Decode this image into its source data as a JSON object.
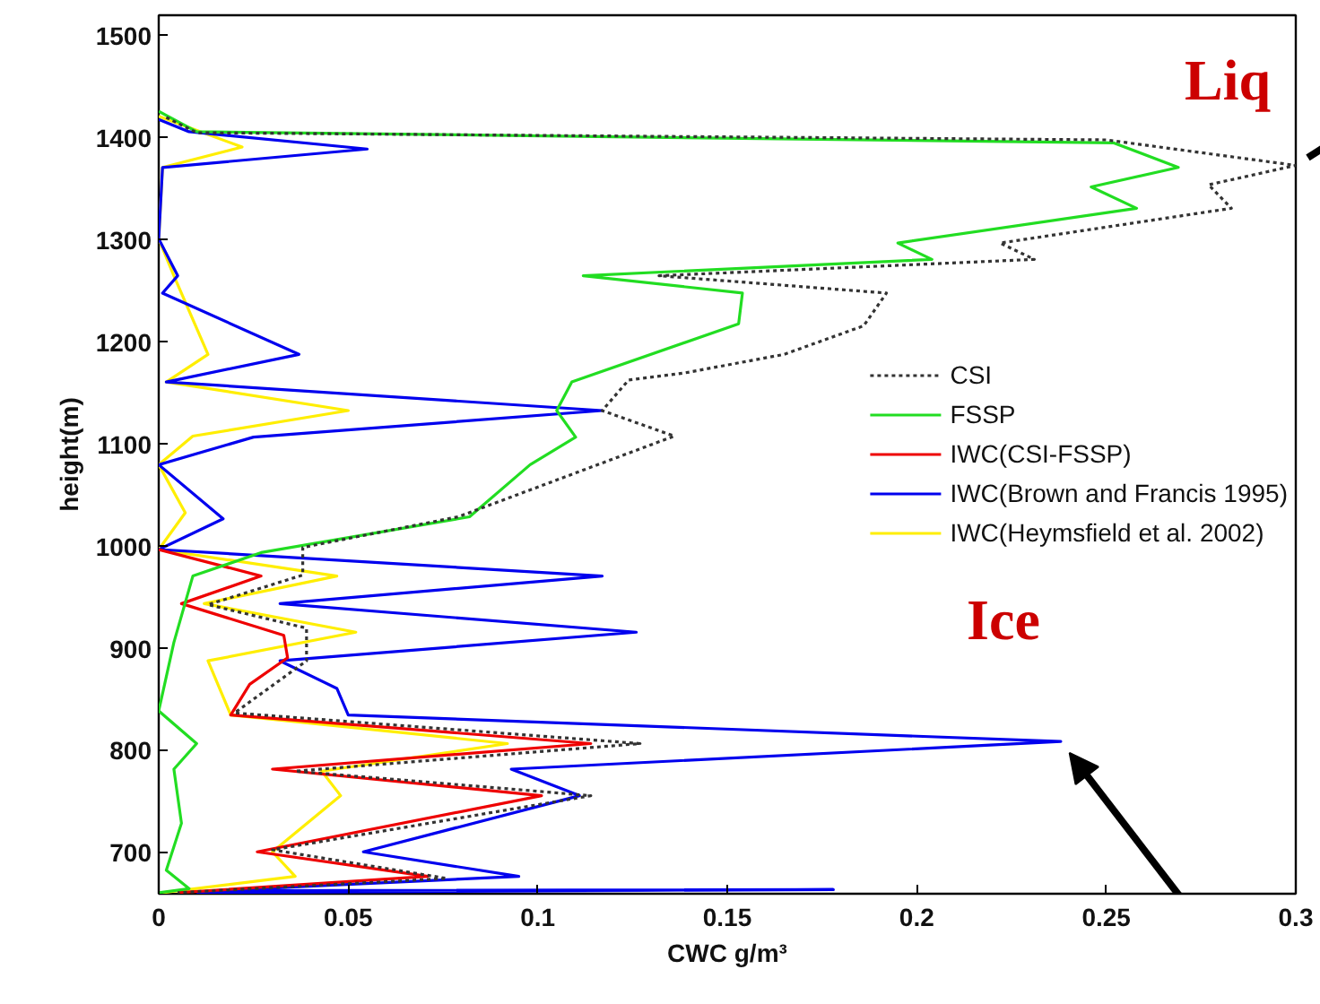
{
  "chart_data": {
    "type": "line",
    "xlabel": "CWC g/m³",
    "ylabel": "height(m)",
    "xlim": [
      0,
      0.3
    ],
    "xticks": [
      0,
      0.05,
      0.1,
      0.15,
      0.2,
      0.25,
      0.3
    ],
    "ylim": [
      660,
      1520
    ],
    "yticks": [
      700,
      800,
      900,
      1000,
      1100,
      1200,
      1300,
      1400,
      1500
    ],
    "grid": false,
    "legend": "right",
    "annotations": [
      {
        "text": "Liq",
        "x": 0.3,
        "y": 1373
      },
      {
        "text": "Ice",
        "x": 0.238,
        "y": 809
      }
    ],
    "series": [
      {
        "name": "CSI",
        "color": "#333333",
        "line_style": "dashed",
        "x": [
          0.002,
          0.01,
          0.25,
          0.3,
          0.277,
          0.283,
          0.222,
          0.231,
          0.132,
          0.192,
          0.186,
          0.165,
          0.139,
          0.124,
          0.117,
          0.136,
          0.079,
          0.038,
          0.038,
          0.013,
          0.039,
          0.039,
          0.02,
          0.127,
          0.036,
          0.114,
          0.03,
          0.076,
          0.005
        ],
        "values": [
          1420,
          1405,
          1398,
          1373,
          1354,
          1331,
          1297,
          1281,
          1265,
          1248,
          1216,
          1188,
          1170,
          1163,
          1133,
          1108,
          1029,
          999,
          972,
          943,
          920,
          888,
          837,
          807,
          780,
          756,
          703,
          675,
          661
        ]
      },
      {
        "name": "FSSP",
        "color": "#22dd22",
        "x": [
          0,
          0.01,
          0.252,
          0.269,
          0.246,
          0.258,
          0.195,
          0.204,
          0.112,
          0.154,
          0.153,
          0.109,
          0.105,
          0.11,
          0.098,
          0.082,
          0.027,
          0.009,
          0.004,
          0,
          0.01,
          0.004,
          0.006,
          0.002,
          0.008,
          0
        ],
        "values": [
          1426,
          1406,
          1395,
          1371,
          1352,
          1331,
          1297,
          1281,
          1265,
          1248,
          1218,
          1161,
          1133,
          1107,
          1080,
          1029,
          994,
          971,
          906,
          839,
          807,
          782,
          729,
          683,
          665,
          661
        ]
      },
      {
        "name": "IWC(CSI-FSSP)",
        "color": "#ee0000",
        "x": [
          0,
          0.027,
          0.006,
          0.033,
          0.034,
          0.024,
          0.019,
          0.114,
          0.03,
          0.101,
          0.026,
          0.071,
          0.005
        ],
        "values": [
          997,
          971,
          944,
          913,
          891,
          865,
          835,
          807,
          782,
          756,
          701,
          677,
          661
        ]
      },
      {
        "name": "IWC(Brown and Francis 1995)",
        "color": "#0000ee",
        "x": [
          0,
          0.008,
          0.055,
          0.001,
          0,
          0.005,
          0.001,
          0.037,
          0.002,
          0.117,
          0.025,
          0,
          0.017,
          0,
          0.117,
          0.032,
          0.126,
          0.032,
          0.047,
          0.05,
          0.238,
          0.093,
          0.111,
          0.054,
          0.095,
          0.015,
          0.178,
          0.01
        ],
        "values": [
          1418,
          1406,
          1389,
          1371,
          1301,
          1265,
          1248,
          1188,
          1161,
          1133,
          1107,
          1080,
          1027,
          997,
          971,
          944,
          916,
          888,
          861,
          835,
          809,
          782,
          756,
          701,
          677,
          663,
          664,
          661
        ]
      },
      {
        "name": "IWC(Heymsfield et al. 2002)",
        "color": "#ffee00",
        "x": [
          0,
          0.022,
          0.001,
          0,
          0.004,
          0.013,
          0.002,
          0.05,
          0.009,
          0,
          0.007,
          0,
          0.047,
          0.012,
          0.052,
          0.013,
          0.019,
          0.092,
          0.043,
          0.048,
          0.03,
          0.036,
          0.001
        ],
        "values": [
          1421,
          1391,
          1371,
          1301,
          1265,
          1188,
          1161,
          1133,
          1108,
          1080,
          1033,
          997,
          971,
          944,
          916,
          888,
          835,
          807,
          780,
          756,
          701,
          677,
          661
        ]
      }
    ]
  }
}
